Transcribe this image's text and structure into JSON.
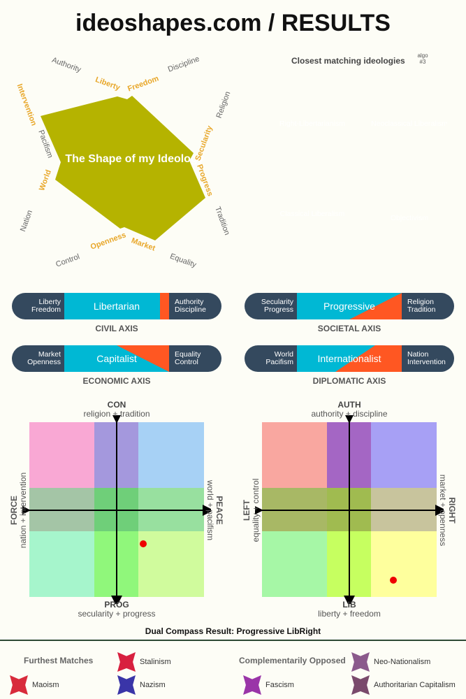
{
  "title": "ideoshapes.com / RESULTS",
  "shape": {
    "title": "The Shape of my Ideology",
    "color": "#b5b300",
    "labels": [
      "Authority",
      "Liberty",
      "Freedom",
      "Discipline",
      "Religion",
      "Secularity",
      "Progress",
      "Tradition",
      "Equality",
      "Market",
      "Openness",
      "Control",
      "Nation",
      "World",
      "Pacifism",
      "Intervention"
    ]
  },
  "matches": {
    "title": "Closest matching ideologies",
    "algo": "algo #3",
    "items": [
      {
        "name": "Right-Libertarianism",
        "color": "#b5b300"
      },
      {
        "name": "Neoclassical Liberalism",
        "color": "#b5b300"
      },
      {
        "name": "Classical Liberalism",
        "color": "#8c8a00"
      },
      {
        "name": "Objectivism",
        "color": "#b5b300"
      }
    ]
  },
  "axes": [
    {
      "left": "Liberty\nFreedom",
      "name": "Libertarian",
      "right": "Authority\nDiscipline",
      "label": "CIVIL AXIS",
      "score": 0.95
    },
    {
      "left": "Secularity\nProgress",
      "name": "Progressive",
      "right": "Religion\nTradition",
      "label": "SOCIETAL AXIS",
      "score": 0.75
    },
    {
      "left": "Market\nOpenness",
      "name": "Capitalist",
      "right": "Equality\nControl",
      "label": "ECONOMIC AXIS",
      "score": 0.7
    },
    {
      "left": "World\nPacifism",
      "name": "Internationalist",
      "right": "Nation\nIntervention",
      "label": "DIPLOMATIC AXIS",
      "score": 0.65
    }
  ],
  "compass1": {
    "top": "CON",
    "top_sub": "religion + tradition",
    "bottom": "PROG",
    "bottom_sub": "secularity + progress",
    "left": "FORCE",
    "left_sub": "nation + intervention",
    "right": "PEACE",
    "right_sub": "world + pacifism",
    "dot": [
      0.3,
      -0.38
    ]
  },
  "compass2": {
    "top": "AUTH",
    "top_sub": "authority + discipline",
    "bottom": "LIB",
    "bottom_sub": "liberty + freedom",
    "left": "LEFT",
    "left_sub": "equality + control",
    "right": "RIGHT",
    "right_sub": "market + openness",
    "dot": [
      0.5,
      -0.8
    ]
  },
  "result": "Dual Compass Result: Progressive LibRight",
  "furthest": {
    "title": "Furthest Matches",
    "items": [
      {
        "name": "Stalinism",
        "color": "#d8203f"
      },
      {
        "name": "Maoism",
        "color": "#d82b3c"
      },
      {
        "name": "Nazism",
        "color": "#3a35a8"
      }
    ]
  },
  "opposed": {
    "title": "Complementarily Opposed",
    "items": [
      {
        "name": "Neo-Nationalism",
        "color": "#8b5a8c"
      },
      {
        "name": "Fascism",
        "color": "#9a35a8"
      },
      {
        "name": "Authoritarian Capitalism",
        "color": "#7a4a6c"
      }
    ]
  }
}
